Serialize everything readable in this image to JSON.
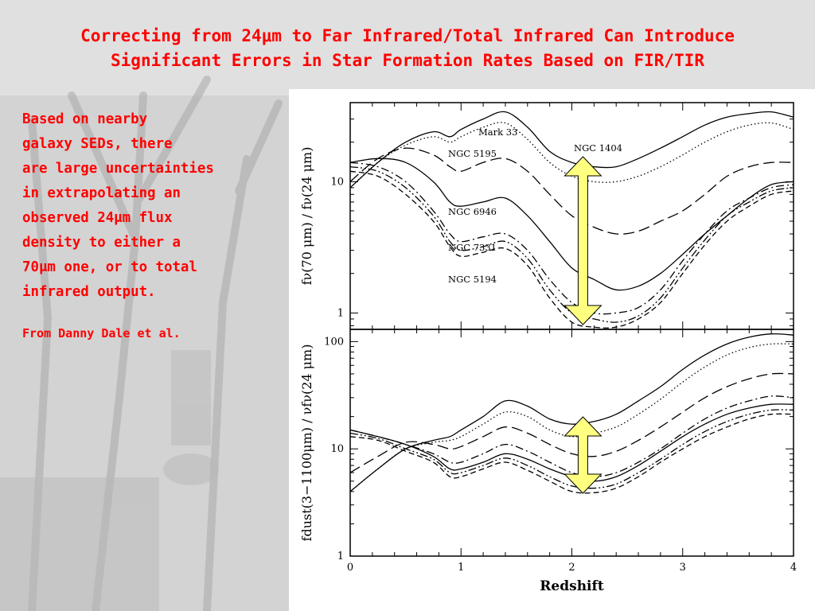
{
  "slide": {
    "title_line1": "Correcting from 24μm to Far Infrared/Total Infrared Can Introduce",
    "title_line2": "Significant Errors in Star Formation Rates Based on FIR/TIR",
    "body_lines": [
      "Based on nearby",
      "galaxy SEDs, there",
      "are large uncertainties",
      "in extrapolating an",
      "observed 24μm flux",
      "density to either a",
      "70μm one, or to total",
      "infrared output."
    ],
    "credit": "From Danny Dale et al."
  },
  "colors": {
    "title": "#ff0000",
    "arrow_fill": "#ffff80",
    "curves": "#000000"
  },
  "chart_data": [
    {
      "type": "line",
      "panel": "top",
      "ylabel": "fν(70 μm) / fν(24 μm)",
      "yscale": "log",
      "ylim": [
        0.75,
        40
      ],
      "xlim": [
        0,
        4
      ],
      "yticks": [
        "1",
        "10"
      ],
      "x": [
        0,
        0.25,
        0.5,
        0.75,
        0.9,
        1.0,
        1.2,
        1.4,
        1.6,
        1.8,
        2.0,
        2.2,
        2.4,
        2.6,
        2.8,
        3.0,
        3.2,
        3.4,
        3.6,
        3.8,
        4.0
      ],
      "series": [
        {
          "name": "Mark 33",
          "style": "solid",
          "values": [
            9,
            14,
            20,
            24,
            22,
            25,
            30,
            34,
            26,
            17,
            14,
            13,
            13,
            15,
            18,
            22,
            27,
            31,
            33,
            34,
            31
          ]
        },
        {
          "name": "",
          "style": "dotted",
          "values": [
            9,
            14,
            19,
            22,
            20,
            22,
            26,
            28,
            21,
            14,
            11,
            10,
            10,
            11,
            13,
            16,
            20,
            24,
            27,
            28,
            25
          ]
        },
        {
          "name": "NGC 5195",
          "style": "longdash",
          "values": [
            10,
            15,
            18,
            16,
            13,
            12,
            14,
            15,
            12,
            8,
            5.5,
            4.5,
            4,
            4.2,
            5,
            6,
            8,
            11,
            13,
            14,
            14
          ]
        },
        {
          "name": "NGC 1404",
          "style": "solid",
          "values": [
            14,
            15,
            14,
            10,
            7,
            6.5,
            7,
            7.5,
            5.5,
            3.5,
            2.2,
            1.8,
            1.5,
            1.6,
            2,
            2.8,
            4,
            5.5,
            7.5,
            9.5,
            10
          ]
        },
        {
          "name": "NGC 6946",
          "style": "dashdot",
          "values": [
            14,
            13,
            10,
            6,
            4,
            3.5,
            3.8,
            4,
            3,
            1.8,
            1.2,
            1.0,
            1.0,
            1.1,
            1.5,
            2.5,
            4,
            6,
            7.5,
            9,
            9.5
          ]
        },
        {
          "name": "NGC 7331",
          "style": "dashdotdot",
          "values": [
            13,
            12,
            9,
            5.5,
            3.5,
            3,
            3.2,
            3.5,
            2.6,
            1.5,
            1.0,
            0.9,
            0.85,
            0.95,
            1.3,
            2.2,
            3.6,
            5.5,
            7,
            8.5,
            9
          ]
        },
        {
          "name": "NGC 5194",
          "style": "dashed",
          "values": [
            12,
            11,
            8,
            5,
            3.2,
            2.7,
            2.9,
            3.1,
            2.3,
            1.3,
            0.85,
            0.78,
            0.78,
            0.9,
            1.2,
            2,
            3.3,
            5,
            6.5,
            8,
            8.5
          ]
        }
      ],
      "annotation": "yellow double-headed arrow at redshift ~2.1"
    },
    {
      "type": "line",
      "panel": "bottom",
      "ylabel": "fdust(3−1100μm) / νfν(24 μm)",
      "xlabel": "Redshift",
      "yscale": "log",
      "ylim": [
        1,
        130
      ],
      "xlim": [
        0,
        4
      ],
      "xticks": [
        "0",
        "1",
        "2",
        "3",
        "4"
      ],
      "yticks": [
        "1",
        "10",
        "100"
      ],
      "x": [
        0,
        0.25,
        0.5,
        0.75,
        0.9,
        1.0,
        1.2,
        1.4,
        1.6,
        1.8,
        2.0,
        2.2,
        2.4,
        2.6,
        2.8,
        3.0,
        3.2,
        3.4,
        3.6,
        3.8,
        4.0
      ],
      "series": [
        {
          "name": "",
          "style": "solid",
          "values": [
            4,
            6.5,
            10,
            12,
            13,
            15,
            20,
            28,
            25,
            19,
            17,
            18,
            21,
            28,
            38,
            55,
            75,
            95,
            110,
            118,
            115
          ]
        },
        {
          "name": "",
          "style": "dotted",
          "values": [
            4,
            6.5,
            10,
            11.5,
            12,
            13,
            17,
            22,
            20,
            15,
            13,
            14,
            16,
            21,
            29,
            42,
            58,
            75,
            88,
            95,
            95
          ]
        },
        {
          "name": "",
          "style": "longdash",
          "values": [
            6,
            8.5,
            11.5,
            11,
            10,
            10.5,
            13,
            16,
            14,
            11,
            9,
            8.5,
            9.5,
            12,
            16,
            22,
            30,
            38,
            45,
            50,
            50
          ]
        },
        {
          "name": "",
          "style": "dashdot",
          "values": [
            15,
            13,
            11,
            9,
            7.5,
            7.5,
            9,
            11,
            9.5,
            7.5,
            6,
            5.5,
            6,
            7.5,
            10,
            14,
            19,
            24,
            28,
            31,
            30
          ]
        },
        {
          "name": "",
          "style": "solid",
          "values": [
            15,
            13,
            11,
            8.5,
            6.5,
            6.5,
            7.5,
            9,
            8,
            6.5,
            5.5,
            5,
            5.5,
            7,
            9.5,
            13,
            17,
            21,
            24,
            26,
            26
          ]
        },
        {
          "name": "",
          "style": "dashdotdot",
          "values": [
            14,
            12.5,
            10,
            8,
            6,
            6,
            7,
            8.2,
            7,
            5.5,
            4.5,
            4.3,
            4.7,
            6,
            8,
            11,
            14.5,
            18,
            21,
            23,
            23
          ]
        },
        {
          "name": "",
          "style": "dashed",
          "values": [
            13,
            12,
            9.5,
            7.5,
            5.5,
            5.5,
            6.5,
            7.5,
            6.3,
            5,
            4,
            3.9,
            4.3,
            5.5,
            7.5,
            10,
            13,
            16,
            19,
            21,
            21
          ]
        }
      ],
      "annotation": "yellow double-headed arrow at redshift ~2.1"
    }
  ]
}
